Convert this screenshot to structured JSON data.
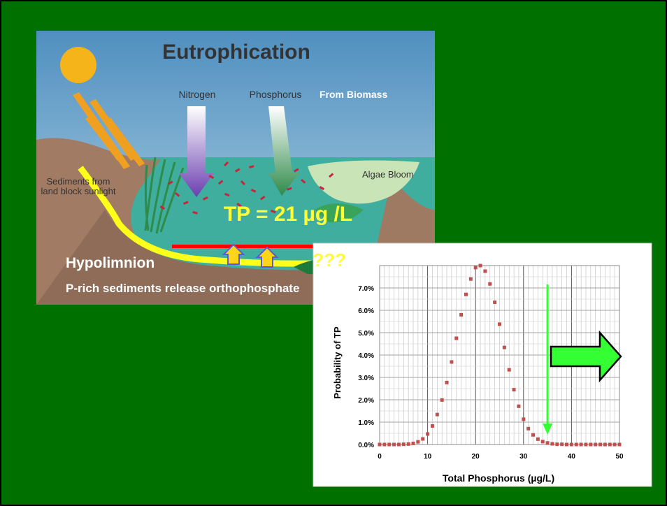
{
  "slide": {
    "background": "#007000",
    "border": "#000000"
  },
  "illustration": {
    "title": "Eutrophication",
    "nitrogen_label": "Nitrogen",
    "phosphorus_label": "Phosphorus",
    "biomass_label": "From Biomass",
    "algae_label": "Algae Bloom",
    "sediments_label_line1": "Sediments from",
    "sediments_label_line2": "land block sunlight",
    "tp_label": "TP = 21 µg /L",
    "question_label": "???",
    "hypolimnion_label": "Hypolimnion",
    "release_label": "P-rich sediments release orthophosphate",
    "colors": {
      "sky": "#5a9cc4",
      "water": "#3fae9e",
      "sediment_line": "#ffff1a",
      "thermocline": "#ff0000",
      "tp_text": "#ffff33"
    }
  },
  "chart_data": {
    "type": "scatter",
    "xlabel": "Total Phosphorus (µg/L)",
    "ylabel": "Probability of TP",
    "xlim": [
      0,
      50
    ],
    "ylim": [
      0,
      0.08
    ],
    "x_ticks": [
      "0",
      "10",
      "20",
      "30",
      "40",
      "50"
    ],
    "y_ticks": [
      "0.0%",
      "1.0%",
      "2.0%",
      "3.0%",
      "4.0%",
      "5.0%",
      "6.0%",
      "7.0%"
    ],
    "grid": true,
    "marker_color": "#c0504d",
    "x": [
      0,
      1,
      2,
      3,
      4,
      5,
      6,
      7,
      8,
      9,
      10,
      11,
      12,
      13,
      14,
      15,
      16,
      17,
      18,
      19,
      20,
      21,
      22,
      23,
      24,
      25,
      26,
      27,
      28,
      29,
      30,
      31,
      32,
      33,
      34,
      35,
      36,
      37,
      38,
      39,
      40,
      41,
      42,
      43,
      44,
      45,
      46,
      47,
      48,
      49,
      50
    ],
    "y": [
      0.0,
      0.0,
      0.0,
      0.0,
      0.0,
      0.0001,
      0.0002,
      0.0005,
      0.0012,
      0.0025,
      0.0047,
      0.0083,
      0.0134,
      0.0199,
      0.0277,
      0.0369,
      0.0475,
      0.058,
      0.0671,
      0.074,
      0.0791,
      0.08,
      0.0775,
      0.0718,
      0.0636,
      0.0538,
      0.0434,
      0.0334,
      0.0245,
      0.0171,
      0.0113,
      0.0071,
      0.0043,
      0.0024,
      0.0013,
      0.0007,
      0.0003,
      0.0001,
      0.0001,
      0.0,
      0.0,
      0.0,
      0.0,
      0.0,
      0.0,
      0.0,
      0.0,
      0.0,
      0.0,
      0.0,
      0.0
    ],
    "threshold_x": 35,
    "threshold_color": "#33ff33"
  }
}
